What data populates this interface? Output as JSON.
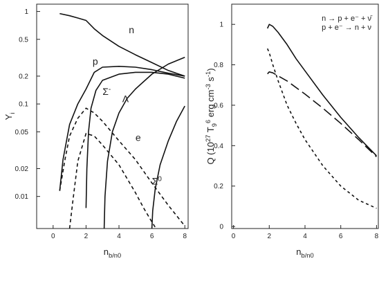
{
  "chart_data": [
    {
      "type": "line",
      "xlabel": "n_b/n_0",
      "ylabel": "Y_i",
      "xlim": [
        -1,
        8.2
      ],
      "ylim": [
        0.0045,
        1.2
      ],
      "yscale": "log",
      "x_ticks": [
        0,
        2,
        4,
        6,
        8
      ],
      "y_ticks": [
        0.01,
        0.02,
        0.05,
        0.1,
        0.2,
        0.5,
        1
      ],
      "y_tick_labels": [
        "0.01",
        "0.02",
        "0.05",
        "0.1",
        "0.2",
        "0.5",
        "1"
      ],
      "grid": false,
      "series": [
        {
          "name": "n",
          "style": "solid",
          "x": [
            0.4,
            1,
            1.5,
            2,
            2.5,
            3,
            4,
            5,
            6,
            7,
            8
          ],
          "y": [
            0.95,
            0.9,
            0.85,
            0.8,
            0.65,
            0.55,
            0.42,
            0.34,
            0.28,
            0.23,
            0.2
          ]
        },
        {
          "name": "p",
          "style": "solid",
          "x": [
            0.4,
            0.6,
            1,
            1.5,
            2,
            2.5,
            3,
            4,
            5,
            6,
            7,
            8
          ],
          "y": [
            0.0115,
            0.025,
            0.06,
            0.1,
            0.145,
            0.22,
            0.25,
            0.255,
            0.25,
            0.235,
            0.215,
            0.2
          ]
        },
        {
          "name": "e",
          "style": "dashed",
          "x": [
            0.4,
            0.7,
            1,
            1.5,
            2,
            2.5,
            3,
            4,
            5,
            6,
            7,
            8
          ],
          "y": [
            0.0115,
            0.024,
            0.045,
            0.07,
            0.09,
            0.08,
            0.065,
            0.04,
            0.025,
            0.014,
            0.008,
            0.0048
          ]
        },
        {
          "name": "",
          "style": "dashed",
          "x": [
            1,
            1.2,
            1.5,
            2,
            2.5,
            3,
            4,
            5,
            5.5,
            6,
            6.25
          ],
          "y": [
            0.0045,
            0.009,
            0.024,
            0.048,
            0.045,
            0.036,
            0.022,
            0.011,
            0.0075,
            0.0053,
            0.0045
          ]
        },
        {
          "name": "Σ⁻",
          "style": "solid",
          "x": [
            2.0,
            2.05,
            2.15,
            2.3,
            2.6,
            3,
            4,
            5,
            6,
            7,
            8
          ],
          "y": [
            0.0075,
            0.02,
            0.05,
            0.09,
            0.14,
            0.18,
            0.21,
            0.22,
            0.22,
            0.21,
            0.19
          ]
        },
        {
          "name": "Λ",
          "style": "solid",
          "x": [
            3.1,
            3.15,
            3.3,
            3.6,
            4,
            4.5,
            5,
            6,
            7,
            8
          ],
          "y": [
            0.0045,
            0.01,
            0.024,
            0.05,
            0.08,
            0.115,
            0.145,
            0.21,
            0.27,
            0.32
          ]
        },
        {
          "name": "Σ⁰",
          "style": "solid",
          "x": [
            6.0,
            6.05,
            6.2,
            6.5,
            7,
            7.5,
            8
          ],
          "y": [
            0.0045,
            0.007,
            0.012,
            0.022,
            0.04,
            0.065,
            0.095
          ]
        }
      ],
      "curve_labels": [
        {
          "text": "n",
          "x": 4.6,
          "y": 0.58
        },
        {
          "text": "p",
          "x": 2.4,
          "y": 0.265
        },
        {
          "text": "Σ",
          "x": 3.0,
          "y": 0.125,
          "sup": "-"
        },
        {
          "text": "Λ",
          "x": 4.2,
          "y": 0.105
        },
        {
          "text": "e",
          "x": 5.0,
          "y": 0.04
        },
        {
          "text": "Σ",
          "x": 6.0,
          "y": 0.0135,
          "sup": "0"
        }
      ]
    },
    {
      "type": "line",
      "xlabel": "n_b/n_0",
      "ylabel": "Q (10^27 T_9^6 erg cm^-3 s^-1)",
      "xlim": [
        -0.1,
        8.1
      ],
      "ylim": [
        -0.01,
        1.1
      ],
      "x_ticks": [
        0,
        2,
        4,
        6,
        8
      ],
      "y_ticks": [
        0,
        0.2,
        0.4,
        0.6,
        0.8,
        1
      ],
      "y_tick_labels": [
        "0",
        "0.2",
        "0.4",
        "0.6",
        "0.8",
        "1"
      ],
      "grid": false,
      "legend": {
        "placement": "top-right",
        "line1": "n → p + e⁻ + ν̄",
        "line2": "p + e⁻ → n + ν"
      },
      "series": [
        {
          "style": "solid",
          "x": [
            1.9,
            2,
            2.2,
            2.5,
            3,
            3.5,
            4,
            5,
            6,
            7,
            8
          ],
          "y": [
            0.98,
            1.0,
            0.99,
            0.96,
            0.9,
            0.83,
            0.77,
            0.65,
            0.54,
            0.44,
            0.35
          ]
        },
        {
          "style": "long-dashed",
          "x": [
            1.9,
            2,
            2.2,
            2.5,
            3,
            4,
            5,
            6,
            7,
            8
          ],
          "y": [
            0.755,
            0.765,
            0.76,
            0.745,
            0.72,
            0.655,
            0.585,
            0.51,
            0.43,
            0.345
          ]
        },
        {
          "style": "short-dashed",
          "x": [
            1.9,
            2,
            2.2,
            2.5,
            3,
            3.5,
            4,
            5,
            6,
            7,
            8
          ],
          "y": [
            0.88,
            0.86,
            0.8,
            0.72,
            0.6,
            0.51,
            0.43,
            0.3,
            0.2,
            0.13,
            0.09
          ]
        }
      ]
    }
  ]
}
